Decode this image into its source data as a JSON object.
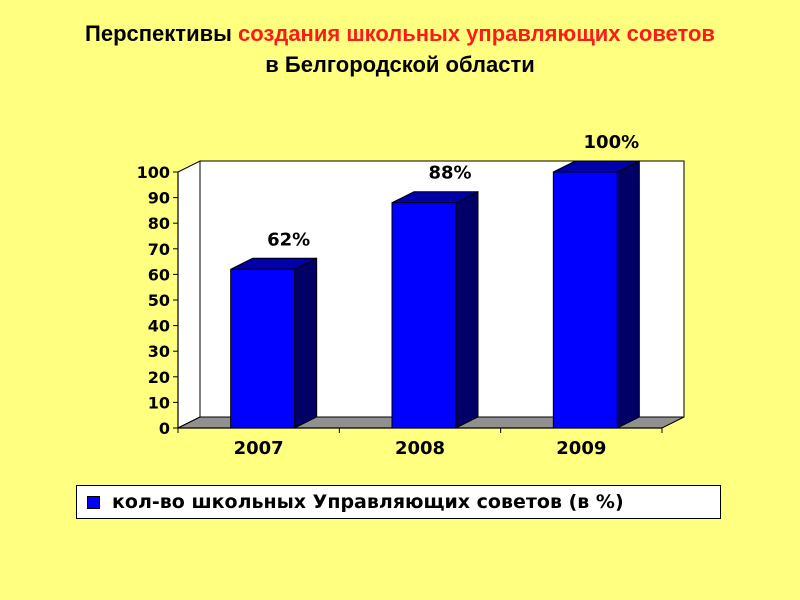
{
  "title": {
    "part1": "Перспективы ",
    "part2_red": "создания школьных управляющих советов",
    "line3": "в Белгородской области"
  },
  "colors": {
    "background": "#ffff80",
    "bar": "#0000ff",
    "title_accent": "#ff1a1a"
  },
  "chart_data": {
    "type": "bar",
    "categories": [
      "2007",
      "2008",
      "2009"
    ],
    "values": [
      62,
      88,
      100
    ],
    "data_labels": [
      "62%",
      "88%",
      "100%"
    ],
    "ylim": [
      0,
      100
    ],
    "yticks": [
      0,
      10,
      20,
      30,
      40,
      50,
      60,
      70,
      80,
      90,
      100
    ],
    "series": [
      {
        "name": "кол-во школьных Управляющих советов (в %)",
        "values": [
          62,
          88,
          100
        ]
      }
    ],
    "legend_position": "bottom",
    "style": "3d"
  }
}
